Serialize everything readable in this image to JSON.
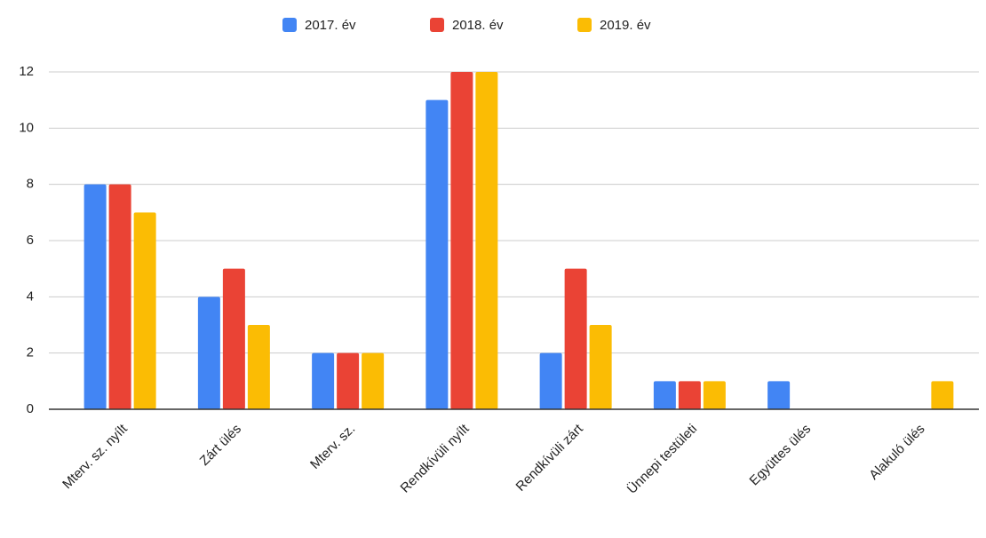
{
  "chart_data": {
    "type": "bar",
    "categories": [
      "Mterv. sz. nyílt",
      "Zárt ülés",
      "Mterv. sz.",
      "Rendkívüli nyílt",
      "Rendkívüli zárt",
      "Ünnepi testületi",
      "Együttes ülés",
      "Alakuló ülés"
    ],
    "series": [
      {
        "name": "2017. év",
        "color": "#4285f4",
        "values": [
          8,
          4,
          2,
          11,
          2,
          1,
          1,
          0
        ]
      },
      {
        "name": "2018. év",
        "color": "#ea4335",
        "values": [
          8,
          5,
          2,
          12,
          5,
          1,
          0,
          0
        ]
      },
      {
        "name": "2019. év",
        "color": "#fbbc04",
        "values": [
          7,
          3,
          2,
          12,
          3,
          1,
          0,
          1
        ]
      }
    ],
    "ylim": [
      0,
      12
    ],
    "yticks": [
      0,
      2,
      4,
      6,
      8,
      10,
      12
    ],
    "grid": true,
    "legend": "top"
  }
}
